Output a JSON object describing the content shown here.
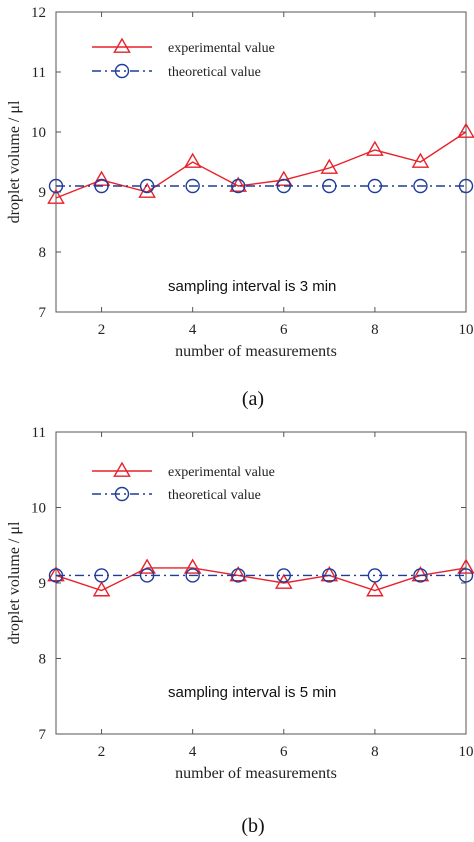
{
  "chart_data": [
    {
      "type": "line",
      "panel_label": "(a)",
      "xlabel": "number of measurements",
      "ylabel": "droplet volume / μl",
      "xlim": [
        1,
        10
      ],
      "ylim": [
        7,
        12
      ],
      "xticks": [
        2,
        4,
        6,
        8,
        10
      ],
      "yticks": [
        7,
        8,
        9,
        10,
        11,
        12
      ],
      "grid": false,
      "legend_position": "top-left",
      "annotation": "sampling interval is 3 min",
      "x": [
        1,
        2,
        3,
        4,
        5,
        6,
        7,
        8,
        9,
        10
      ],
      "series": [
        {
          "name": "experimental value",
          "color": "#e8212a",
          "marker": "triangle",
          "line": "solid",
          "values": [
            8.9,
            9.2,
            9.0,
            9.5,
            9.1,
            9.2,
            9.4,
            9.7,
            9.5,
            10.0
          ]
        },
        {
          "name": "theoretical value",
          "color": "#1f3d99",
          "marker": "circle",
          "line": "dash-dot",
          "values": [
            9.1,
            9.1,
            9.1,
            9.1,
            9.1,
            9.1,
            9.1,
            9.1,
            9.1,
            9.1
          ]
        }
      ]
    },
    {
      "type": "line",
      "panel_label": "(b)",
      "xlabel": "number of measurements",
      "ylabel": "droplet volume / μl",
      "xlim": [
        1,
        10
      ],
      "ylim": [
        7,
        11
      ],
      "xticks": [
        2,
        4,
        6,
        8,
        10
      ],
      "yticks": [
        7,
        8,
        9,
        10,
        11
      ],
      "grid": false,
      "legend_position": "top-left",
      "annotation": "sampling interval is 5 min",
      "x": [
        1,
        2,
        3,
        4,
        5,
        6,
        7,
        8,
        9,
        10
      ],
      "series": [
        {
          "name": "experimental value",
          "color": "#e8212a",
          "marker": "triangle",
          "line": "solid",
          "values": [
            9.1,
            8.9,
            9.2,
            9.2,
            9.1,
            9.0,
            9.1,
            8.9,
            9.1,
            9.2
          ]
        },
        {
          "name": "theoretical value",
          "color": "#1f3d99",
          "marker": "circle",
          "line": "dash-dot",
          "values": [
            9.1,
            9.1,
            9.1,
            9.1,
            9.1,
            9.1,
            9.1,
            9.1,
            9.1,
            9.1
          ]
        }
      ]
    }
  ]
}
